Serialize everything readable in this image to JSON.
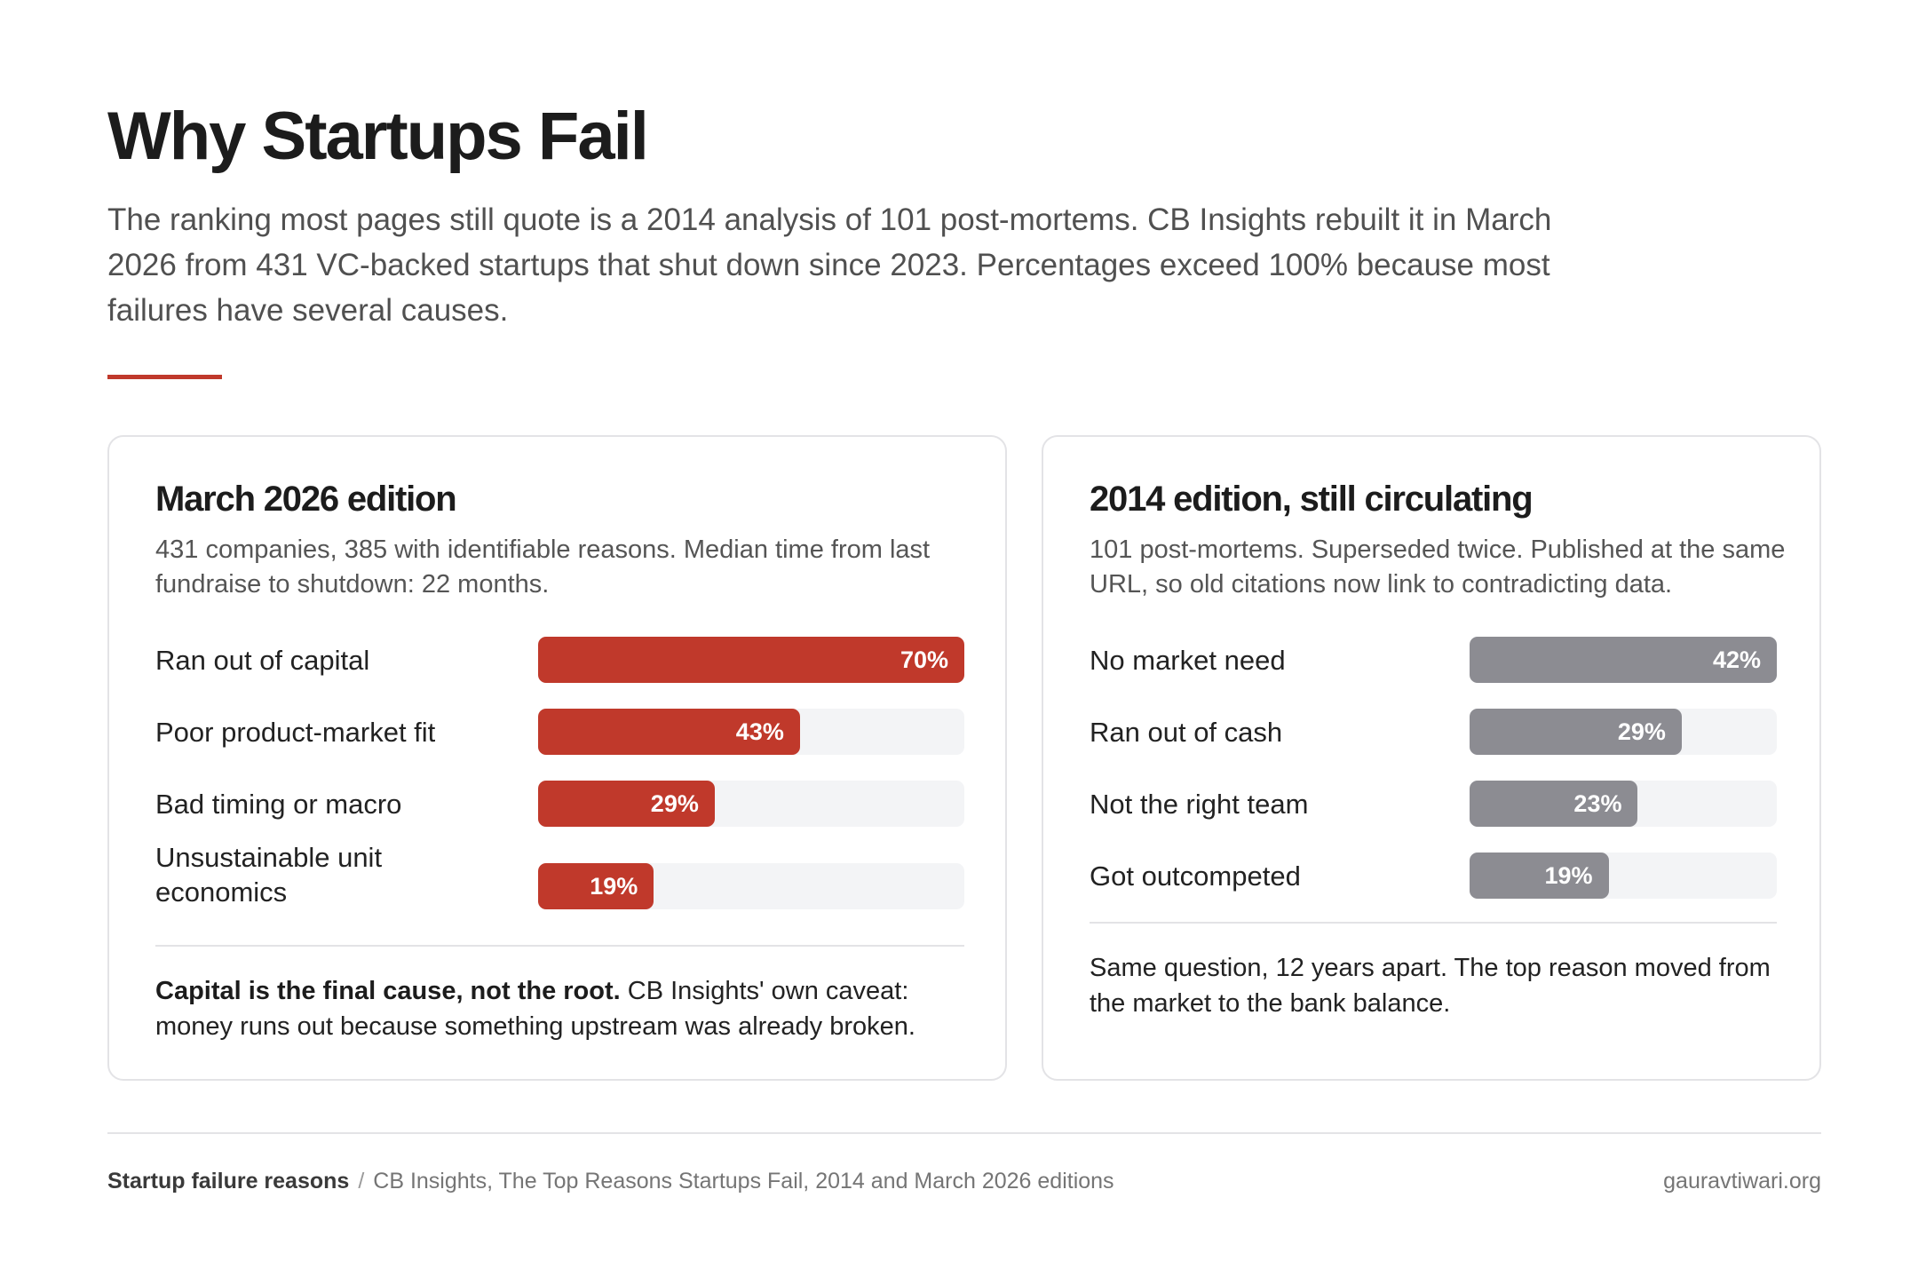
{
  "title": "Why Startups Fail",
  "intro": "The ranking most pages still quote is a 2014 analysis of 101 post-mortems. CB Insights rebuilt it in March 2026 from 431 VC-backed startups that shut down since 2023. Percentages exceed 100% because most failures have several causes.",
  "colors": {
    "accent": "#c0392b",
    "neutral": "#8c8c92",
    "track": "#f3f4f6"
  },
  "chart_data": [
    {
      "type": "bar",
      "orientation": "horizontal",
      "title": "March 2026 edition",
      "subtitle": "431 companies, 385 with identifiable reasons. Median time from last fundraise to shutdown: 22 months.",
      "categories": [
        "Ran out of capital",
        "Poor product-market fit",
        "Bad timing or macro",
        "Unsustainable unit economics"
      ],
      "values": [
        70,
        43,
        29,
        19
      ],
      "value_labels": [
        "70%",
        "43%",
        "29%",
        "19%"
      ],
      "xlim": [
        0,
        70
      ],
      "color": "#c0392b",
      "grid": false,
      "note_bold": "Capital is the final cause, not the root.",
      "note": "CB Insights' own caveat: money runs out because something upstream was already broken."
    },
    {
      "type": "bar",
      "orientation": "horizontal",
      "title": "2014 edition, still circulating",
      "subtitle": "101 post-mortems. Superseded twice. Published at the same URL, so old citations now link to contradicting data.",
      "categories": [
        "No market need",
        "Ran out of cash",
        "Not the right team",
        "Got outcompeted"
      ],
      "values": [
        42,
        29,
        23,
        19
      ],
      "value_labels": [
        "42%",
        "29%",
        "23%",
        "19%"
      ],
      "xlim": [
        0,
        42
      ],
      "color": "#8c8c92",
      "grid": false,
      "note": "Same question, 12 years apart. The top reason moved from the market to the bank balance."
    }
  ],
  "footer": {
    "label": "Startup failure reasons",
    "separator": "/",
    "source": "CB Insights, The Top Reasons Startups Fail, 2014 and March 2026 editions",
    "site": "gauravtiwari.org"
  }
}
